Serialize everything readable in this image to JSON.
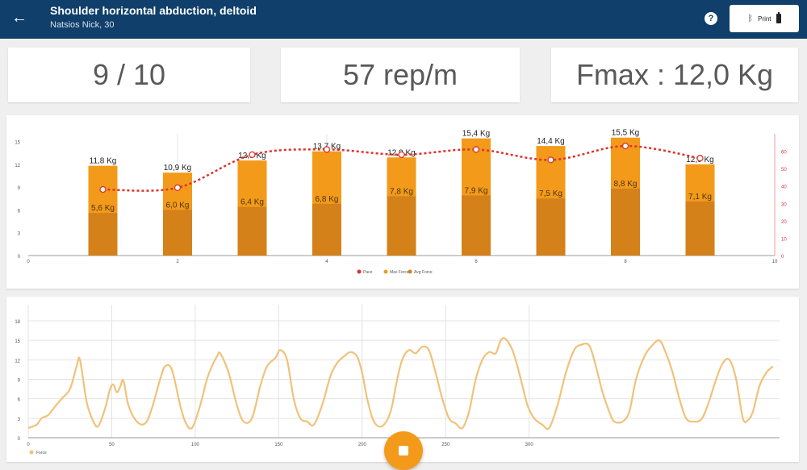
{
  "header": {
    "title": "Shoulder horizontal abduction, deltoid",
    "subtitle": "Natsios Nick, 30",
    "help_icon": "?",
    "device_label": "Print",
    "colors": {
      "bar": "#0f3f6a"
    }
  },
  "stats": {
    "reps": "9 / 10",
    "rate": "57 rep/m",
    "fmax": "Fmax : 12,0 Kg"
  },
  "chart_data": [
    {
      "type": "bar",
      "x": [
        1,
        2,
        3,
        4,
        5,
        6,
        7,
        8,
        9
      ],
      "series": [
        {
          "name": "Max Force",
          "values": [
            11.8,
            10.9,
            12.5,
            13.7,
            12.9,
            15.4,
            14.4,
            15.5,
            12.0
          ],
          "labels": [
            "11,8 Kg",
            "10,9 Kg",
            "12,5 Kg",
            "13,7 Kg",
            "12,9 Kg",
            "15,4 Kg",
            "14,4 Kg",
            "15,5 Kg",
            "12,0 Kg"
          ],
          "color": "#f39a1a"
        },
        {
          "name": "Avg Force",
          "values": [
            5.6,
            6.0,
            6.4,
            6.8,
            7.8,
            7.9,
            7.5,
            8.8,
            7.1
          ],
          "labels": [
            "5,6 Kg",
            "6,0 Kg",
            "6,4 Kg",
            "6,8 Kg",
            "7,8 Kg",
            "7,9 Kg",
            "7,5 Kg",
            "8,8 Kg",
            "7,1 Kg"
          ],
          "color": "#d4811a"
        },
        {
          "name": "Pace",
          "axis": "right",
          "values": [
            38,
            39,
            58,
            61,
            58,
            61,
            55,
            63,
            56
          ],
          "color": "#e0312b"
        }
      ],
      "xlim": [
        0,
        10
      ],
      "xticks": [
        "0",
        "2",
        "4",
        "6",
        "8",
        "10"
      ],
      "ylim": [
        0,
        16
      ],
      "yticks": [
        "0",
        "3",
        "6",
        "9",
        "12",
        "15"
      ],
      "y2lim": [
        0,
        70
      ],
      "y2ticks": [
        "0",
        "10",
        "20",
        "30",
        "40",
        "50",
        "60"
      ],
      "legend": [
        "Pace",
        "Max Force",
        "Avg Force"
      ],
      "legend_position": "bottom-center"
    },
    {
      "type": "line",
      "series": [
        {
          "name": "Force",
          "color": "#f0c27a",
          "points": [
            [
              0,
              1.5
            ],
            [
              5,
              2
            ],
            [
              8,
              3
            ],
            [
              12,
              3.5
            ],
            [
              16,
              4.8
            ],
            [
              20,
              6
            ],
            [
              25,
              7.5
            ],
            [
              29,
              11
            ],
            [
              31,
              12
            ],
            [
              35,
              5.5
            ],
            [
              39,
              2.5
            ],
            [
              42,
              1.8
            ],
            [
              46,
              4.5
            ],
            [
              49,
              7.5
            ],
            [
              51,
              8.2
            ],
            [
              53,
              7
            ],
            [
              55,
              7.8
            ],
            [
              57,
              8.8
            ],
            [
              60,
              5
            ],
            [
              65,
              2.5
            ],
            [
              70,
              2.2
            ],
            [
              74,
              4.5
            ],
            [
              79,
              9
            ],
            [
              82,
              11
            ],
            [
              86,
              10.5
            ],
            [
              91,
              5
            ],
            [
              94,
              2.5
            ],
            [
              98,
              1.5
            ],
            [
              103,
              5
            ],
            [
              107,
              9
            ],
            [
              110,
              11
            ],
            [
              113,
              12.5
            ],
            [
              115,
              13
            ],
            [
              120,
              10
            ],
            [
              125,
              5
            ],
            [
              129,
              2.5
            ],
            [
              134,
              3
            ],
            [
              139,
              8
            ],
            [
              143,
              11
            ],
            [
              148,
              12.3
            ],
            [
              151,
              13.5
            ],
            [
              155,
              12
            ],
            [
              159,
              6
            ],
            [
              163,
              3
            ],
            [
              167,
              2.5
            ],
            [
              171,
              2
            ],
            [
              176,
              5
            ],
            [
              181,
              9.5
            ],
            [
              185,
              11.5
            ],
            [
              189,
              12.5
            ],
            [
              193,
              13.2
            ],
            [
              197,
              12.5
            ],
            [
              200,
              10
            ],
            [
              203,
              6
            ],
            [
              207,
              2.5
            ],
            [
              212,
              1.8
            ],
            [
              217,
              4
            ],
            [
              221,
              9
            ],
            [
              224,
              12
            ],
            [
              228,
              13.5
            ],
            [
              232,
              13
            ],
            [
              236,
              14
            ],
            [
              240,
              13.5
            ],
            [
              244,
              10
            ],
            [
              248,
              6
            ],
            [
              252,
              3
            ],
            [
              256,
              2.2
            ],
            [
              260,
              1.5
            ],
            [
              264,
              4
            ],
            [
              268,
              9
            ],
            [
              272,
              12
            ],
            [
              276,
              13.2
            ],
            [
              280,
              13
            ],
            [
              283,
              15
            ],
            [
              286,
              15.2
            ],
            [
              290,
              13.5
            ],
            [
              293,
              11
            ],
            [
              296,
              8
            ],
            [
              299,
              5
            ],
            [
              303,
              3
            ],
            [
              308,
              2
            ],
            [
              312,
              1.5
            ],
            [
              317,
              5
            ],
            [
              322,
              10
            ],
            [
              327,
              13.5
            ],
            [
              331,
              14.3
            ],
            [
              336,
              14.2
            ],
            [
              340,
              11
            ],
            [
              344,
              7
            ],
            [
              348,
              4
            ],
            [
              351,
              2.5
            ],
            [
              356,
              2.5
            ],
            [
              360,
              4
            ],
            [
              364,
              9
            ],
            [
              369,
              12.5
            ],
            [
              373,
              14
            ],
            [
              378,
              15
            ],
            [
              382,
              13
            ],
            [
              386,
              10
            ],
            [
              390,
              6
            ],
            [
              394,
              3
            ],
            [
              398,
              2.5
            ],
            [
              403,
              2.8
            ],
            [
              407,
              5
            ],
            [
              412,
              9
            ],
            [
              416,
              11.5
            ],
            [
              420,
              12
            ],
            [
              424,
              9
            ],
            [
              428,
              3
            ],
            [
              431,
              2.7
            ],
            [
              434,
              4
            ],
            [
              438,
              8
            ],
            [
              442,
              10
            ],
            [
              446,
              11
            ]
          ]
        }
      ],
      "xlim": [
        0,
        450
      ],
      "xticks": [
        "0",
        "50",
        "100",
        "150",
        "200",
        "250",
        "300"
      ],
      "ylim": [
        0,
        18
      ],
      "yticks": [
        "0",
        "3",
        "6",
        "9",
        "12",
        "15",
        "18"
      ],
      "legend": [
        "Force"
      ],
      "legend_position": "bottom-left"
    }
  ],
  "fab": {
    "icon": "stop-icon",
    "color": "#f39a1a"
  }
}
